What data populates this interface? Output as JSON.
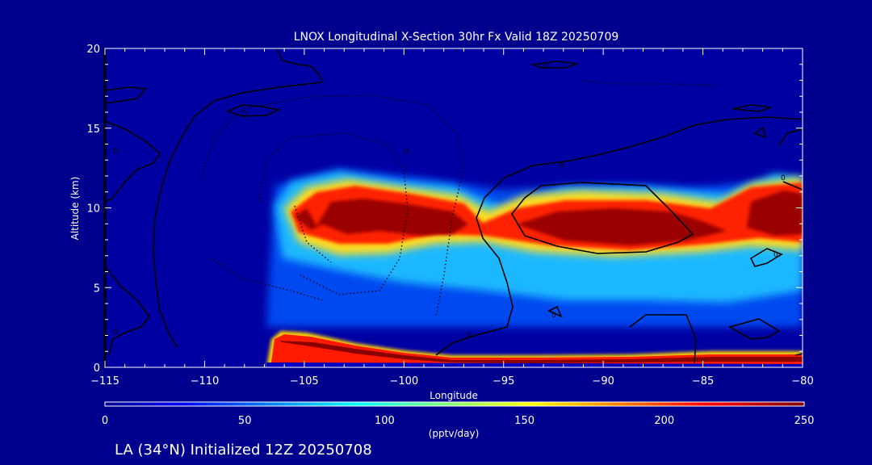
{
  "chart_data": {
    "type": "heatmap",
    "title": "LNOX Longitudinal X-Section 30hr  Fx Valid 18Z 20250709",
    "xlabel": "Longitude",
    "ylabel": "Altitude (km)",
    "xlim": [
      -115,
      -80
    ],
    "ylim": [
      0,
      20
    ],
    "x_ticks": [
      -115,
      -110,
      -105,
      -100,
      -95,
      -90,
      -85,
      -80
    ],
    "x_tick_labels": [
      "−115",
      "−110",
      "−105",
      "−100",
      "−95",
      "−90",
      "−85",
      "−80"
    ],
    "y_ticks": [
      0,
      5,
      10,
      15,
      20
    ],
    "y_tick_labels": [
      "0",
      "5",
      "10",
      "15",
      "20"
    ],
    "colorbar": {
      "min": 0,
      "max": 250,
      "ticks": [
        0,
        50,
        100,
        150,
        200,
        250
      ],
      "tick_labels": [
        "0",
        "50",
        "100",
        "150",
        "200",
        "250"
      ],
      "label": "(pptv/day)",
      "colormap": "jet"
    },
    "features": [
      {
        "lon": [
          -106.5,
          -80
        ],
        "alt_center": 9.5,
        "alt_halfwidth": 2.0,
        "peak": 250
      },
      {
        "lon": [
          -106,
          -80
        ],
        "alt_center": 0.8,
        "alt_halfwidth": 0.5,
        "peak": 250
      }
    ],
    "contour_level_labels": [
      "0",
      "0",
      "0",
      "0",
      "0",
      "0",
      "0",
      "0",
      "0",
      "0"
    ]
  },
  "footer_text": "LA (34°N) Initialized 12Z 20250708",
  "colors": {
    "background": "#00008e",
    "text": "#ffffff",
    "contour": "#000000"
  }
}
